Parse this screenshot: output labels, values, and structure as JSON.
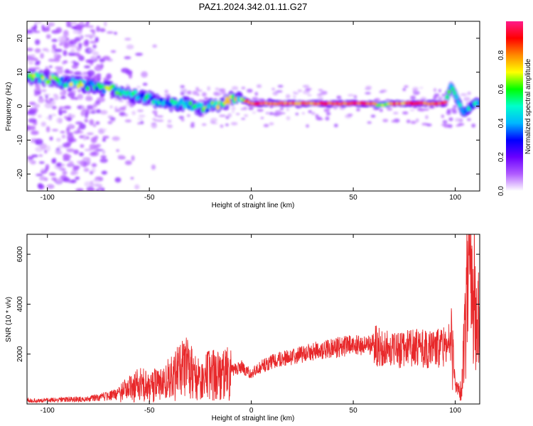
{
  "title": "PAZ1.2024.342.01.11.G27",
  "chart_data": [
    {
      "type": "heatmap",
      "xlabel": "Height of straight line (km)",
      "ylabel": "Frequency (Hz)",
      "xlim": [
        -110,
        112
      ],
      "ylim": [
        -25,
        25
      ],
      "xticks": [
        -100,
        -50,
        0,
        50,
        100
      ],
      "yticks": [
        -20,
        -10,
        0,
        10,
        20
      ],
      "colorbar": {
        "label": "Normalized spectral amplitude",
        "range": [
          0,
          1
        ],
        "ticks": [
          "0.0",
          "0.2",
          "0.4",
          "0.6",
          "0.8"
        ],
        "stops": [
          "#ffffff",
          "#b15cff",
          "#6a00ff",
          "#0000ff",
          "#00b7ff",
          "#00ffcc",
          "#00ff00",
          "#ffff00",
          "#ff8a00",
          "#ff0000",
          "#ff1a8a"
        ]
      },
      "ridge": [
        {
          "x": -108,
          "y": 8.5,
          "a": 0.55
        },
        {
          "x": -100,
          "y": 8.0,
          "a": 0.6
        },
        {
          "x": -92,
          "y": 7.2,
          "a": 0.55
        },
        {
          "x": -84,
          "y": 6.5,
          "a": 0.55
        },
        {
          "x": -76,
          "y": 5.8,
          "a": 0.5
        },
        {
          "x": -68,
          "y": 4.8,
          "a": 0.55
        },
        {
          "x": -60,
          "y": 3.6,
          "a": 0.5
        },
        {
          "x": -52,
          "y": 2.5,
          "a": 0.45
        },
        {
          "x": -46,
          "y": 1.5,
          "a": 0.45
        },
        {
          "x": -40,
          "y": 0.8,
          "a": 0.45
        },
        {
          "x": -34,
          "y": 0.7,
          "a": 0.55
        },
        {
          "x": -28,
          "y": 0.0,
          "a": 0.5
        },
        {
          "x": -24,
          "y": -0.8,
          "a": 0.5
        },
        {
          "x": -20,
          "y": 0.2,
          "a": 0.55
        },
        {
          "x": -15,
          "y": 0.3,
          "a": 0.6
        },
        {
          "x": -10,
          "y": 2.5,
          "a": 0.6
        },
        {
          "x": -5,
          "y": 2.2,
          "a": 0.6
        },
        {
          "x": 0,
          "y": 0.8,
          "a": 0.9
        },
        {
          "x": 20,
          "y": 0.8,
          "a": 0.85
        },
        {
          "x": 40,
          "y": 0.8,
          "a": 0.85
        },
        {
          "x": 60,
          "y": 0.8,
          "a": 0.85
        },
        {
          "x": 62,
          "y": 0.2,
          "a": 0.6
        },
        {
          "x": 70,
          "y": 0.8,
          "a": 0.8
        },
        {
          "x": 80,
          "y": 0.8,
          "a": 0.85
        },
        {
          "x": 95,
          "y": 0.8,
          "a": 0.85
        },
        {
          "x": 98,
          "y": 6.0,
          "a": 0.5
        },
        {
          "x": 104,
          "y": -2.0,
          "a": 0.4
        },
        {
          "x": 110,
          "y": 1.0,
          "a": 0.45
        }
      ],
      "noise_band": {
        "xmin": -110,
        "xmax": -72,
        "ymin": -25,
        "ymax": 25
      }
    },
    {
      "type": "line",
      "xlabel": "Height of straight line (km)",
      "ylabel": "SNR (10 * v/v)",
      "xlim": [
        -110,
        112
      ],
      "ylim": [
        0,
        6800
      ],
      "xticks": [
        -100,
        -50,
        0,
        50,
        100
      ],
      "yticks": [
        2000,
        4000,
        6000
      ],
      "color": "#e8282a",
      "x": [
        -110,
        -100,
        -90,
        -80,
        -70,
        -65,
        -60,
        -55,
        -50,
        -45,
        -40,
        -35,
        -30,
        -28,
        -25,
        -20,
        -15,
        -10,
        -5,
        0,
        5,
        10,
        15,
        20,
        25,
        30,
        35,
        40,
        45,
        50,
        55,
        60,
        62,
        65,
        70,
        75,
        80,
        85,
        90,
        95,
        98,
        100,
        103,
        105,
        107,
        109,
        111
      ],
      "y": [
        150,
        150,
        180,
        200,
        320,
        400,
        600,
        800,
        700,
        800,
        1000,
        1300,
        1500,
        1100,
        900,
        1200,
        1100,
        1300,
        1500,
        1200,
        1500,
        1700,
        1850,
        1900,
        2000,
        2100,
        2200,
        2250,
        2300,
        2350,
        2350,
        2400,
        2300,
        2200,
        2150,
        2200,
        2250,
        2200,
        2200,
        2300,
        2500,
        600,
        400,
        3200,
        4500,
        3500,
        3000
      ]
    }
  ]
}
